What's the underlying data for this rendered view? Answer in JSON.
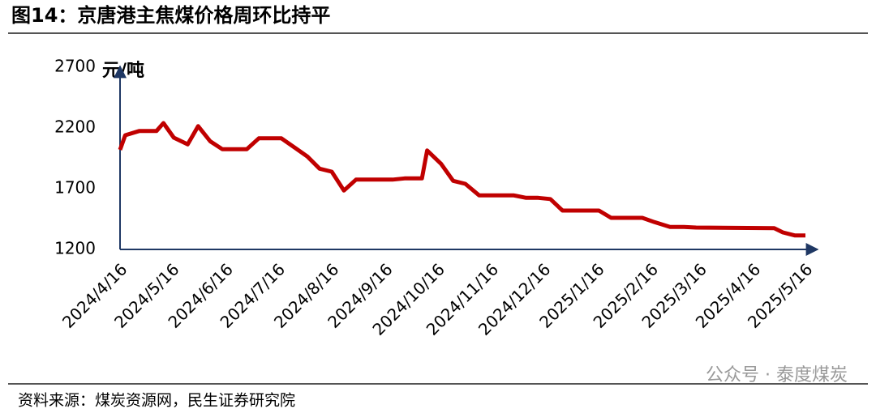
{
  "chart_data": {
    "type": "line",
    "title": "图14：京唐港主焦煤价格周环比持平",
    "y_label": "元/吨",
    "source": "资料来源：煤炭资源网，民生证券研究院",
    "watermark": "公众号 · 泰度煤炭",
    "color": "#c00000",
    "x": [
      "2024/4/16",
      "2024/4/19",
      "2024/4/27",
      "2024/5/7",
      "2024/5/11",
      "2024/5/17",
      "2024/5/25",
      "2024/5/31",
      "2024/6/7",
      "2024/6/14",
      "2024/6/28",
      "2024/7/5",
      "2024/7/18",
      "2024/7/26",
      "2024/8/2",
      "2024/8/9",
      "2024/8/16",
      "2024/8/23",
      "2024/8/30",
      "2024/9/20",
      "2024/9/27",
      "2024/10/7",
      "2024/10/10",
      "2024/10/18",
      "2024/10/25",
      "2024/11/1",
      "2024/11/9",
      "2024/11/29",
      "2024/12/6",
      "2024/12/13",
      "2024/12/20",
      "2024/12/27",
      "2025/1/17",
      "2025/1/24",
      "2025/2/11",
      "2025/2/18",
      "2025/2/27",
      "2025/3/7",
      "2025/3/14",
      "2025/4/28",
      "2025/5/3",
      "2025/5/10",
      "2025/5/16"
    ],
    "values": [
      2020,
      2140,
      2175,
      2175,
      2240,
      2120,
      2065,
      2215,
      2090,
      2025,
      2025,
      2115,
      2115,
      2035,
      1965,
      1865,
      1840,
      1685,
      1775,
      1775,
      1785,
      1785,
      2015,
      1905,
      1765,
      1740,
      1645,
      1645,
      1625,
      1625,
      1615,
      1520,
      1520,
      1460,
      1460,
      1425,
      1385,
      1385,
      1380,
      1375,
      1340,
      1315,
      1315
    ],
    "xlim": [
      "2024/4/16",
      "2025/5/16"
    ],
    "xticks": [
      "2024/4/16",
      "2024/5/16",
      "2024/6/16",
      "2024/7/16",
      "2024/8/16",
      "2024/9/16",
      "2024/10/16",
      "2024/11/16",
      "2024/12/16",
      "2025/1/16",
      "2025/2/16",
      "2025/3/16",
      "2025/4/16",
      "2025/5/16"
    ],
    "ylim": [
      1200,
      2700
    ],
    "yticks": [
      1200,
      1700,
      2200,
      2700
    ]
  }
}
